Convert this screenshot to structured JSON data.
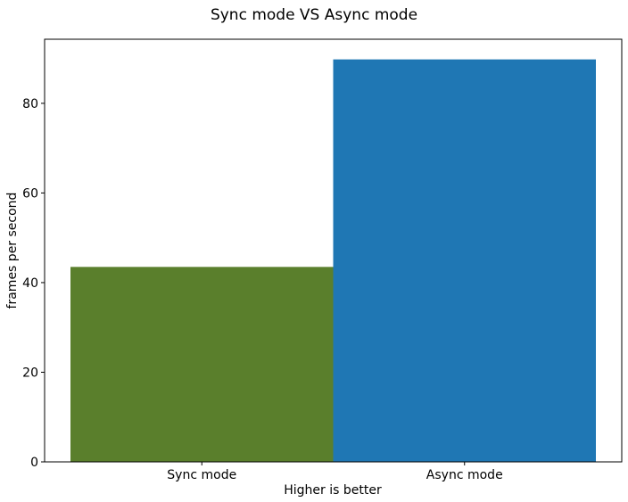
{
  "chart_data": {
    "type": "bar",
    "title": "Sync mode VS Async mode",
    "xlabel": "Higher is better",
    "ylabel": "frames per second",
    "categories": [
      "Sync mode",
      "Async mode"
    ],
    "values": [
      43.5,
      89.8
    ],
    "colors": [
      "#5a7f2c",
      "#1f77b4"
    ],
    "ylim": [
      0,
      94.3
    ],
    "yticks": [
      0,
      20,
      40,
      60,
      80
    ],
    "grid": false,
    "legend": "none"
  }
}
